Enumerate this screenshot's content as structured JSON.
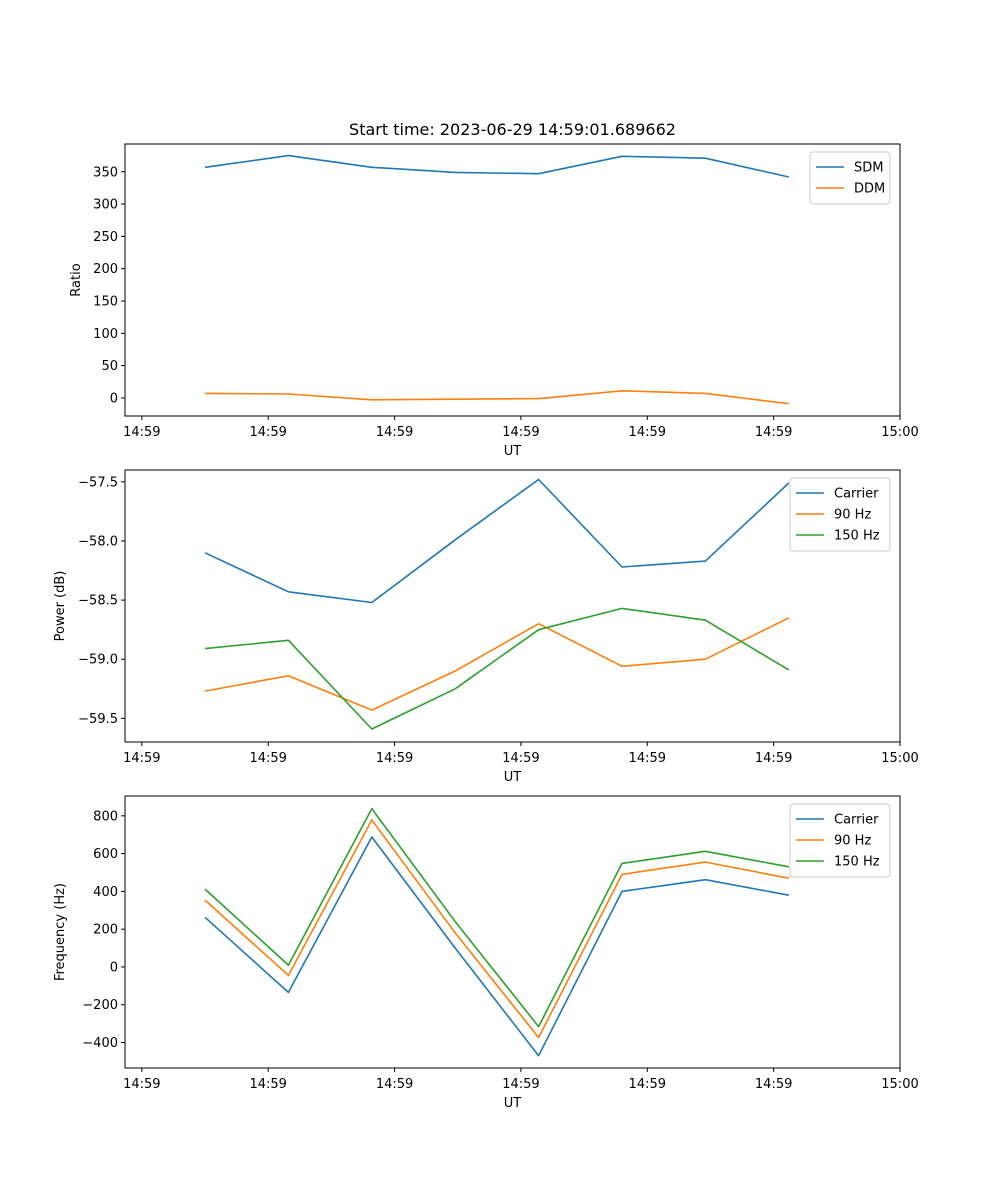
{
  "title": "Start time: 2023-06-29 14:59:01.689662",
  "colors": {
    "blue": "#1f77b4",
    "orange": "#ff7f0e",
    "green": "#2ca02c"
  },
  "chart_data": [
    {
      "type": "line",
      "title": "Start time: 2023-06-29 14:59:01.689662",
      "xlabel": "UT",
      "ylabel": "Ratio",
      "x_ticklabels": [
        "14:59",
        "14:59",
        "14:59",
        "14:59",
        "14:59",
        "14:59",
        "15:00"
      ],
      "x_tick_positions": [
        0,
        1.5,
        3,
        4.5,
        6,
        7.5,
        9
      ],
      "x": [
        0.75,
        1.74,
        2.73,
        3.72,
        4.71,
        5.7,
        6.69,
        7.68
      ],
      "xlim": [
        -0.2,
        9.0
      ],
      "ylim": [
        -28,
        393
      ],
      "yticks": [
        0,
        50,
        100,
        150,
        200,
        250,
        300,
        350
      ],
      "legend": "top-right",
      "series": [
        {
          "name": "SDM",
          "color": "#1f77b4",
          "values": [
            357,
            375,
            357,
            349,
            347,
            374,
            371,
            342
          ]
        },
        {
          "name": "DDM",
          "color": "#ff7f0e",
          "values": [
            7,
            6,
            -3,
            -2,
            -1,
            11,
            7,
            -9
          ]
        }
      ]
    },
    {
      "type": "line",
      "title": "",
      "xlabel": "UT",
      "ylabel": "Power (dB)",
      "x_ticklabels": [
        "14:59",
        "14:59",
        "14:59",
        "14:59",
        "14:59",
        "14:59",
        "15:00"
      ],
      "x_tick_positions": [
        0,
        1.5,
        3,
        4.5,
        6,
        7.5,
        9
      ],
      "x": [
        0.75,
        1.74,
        2.73,
        3.72,
        4.71,
        5.7,
        6.69,
        7.68
      ],
      "xlim": [
        -0.2,
        9.0
      ],
      "ylim": [
        -59.7,
        -57.4
      ],
      "yticks": [
        -59.5,
        -59.0,
        -58.5,
        -58.0,
        -57.5
      ],
      "ytick_labels": [
        "−59.5",
        "−59.0",
        "−58.5",
        "−58.0",
        "−57.5"
      ],
      "legend": "top-right",
      "series": [
        {
          "name": "Carrier",
          "color": "#1f77b4",
          "values": [
            -58.1,
            -58.43,
            -58.52,
            -57.99,
            -57.48,
            -58.22,
            -58.17,
            -57.51
          ]
        },
        {
          "name": "90 Hz",
          "color": "#ff7f0e",
          "values": [
            -59.27,
            -59.14,
            -59.43,
            -59.1,
            -58.7,
            -59.06,
            -59.0,
            -58.65
          ]
        },
        {
          "name": "150 Hz",
          "color": "#2ca02c",
          "values": [
            -58.91,
            -58.84,
            -59.59,
            -59.25,
            -58.75,
            -58.57,
            -58.67,
            -59.09
          ]
        }
      ]
    },
    {
      "type": "line",
      "title": "",
      "xlabel": "UT",
      "ylabel": "Frequency (Hz)",
      "x_ticklabels": [
        "14:59",
        "14:59",
        "14:59",
        "14:59",
        "14:59",
        "14:59",
        "15:00"
      ],
      "x_tick_positions": [
        0,
        1.5,
        3,
        4.5,
        6,
        7.5,
        9
      ],
      "x": [
        0.75,
        1.74,
        2.73,
        3.72,
        4.71,
        5.7,
        6.69,
        7.68
      ],
      "xlim": [
        -0.2,
        9.0
      ],
      "ylim": [
        -535,
        905
      ],
      "yticks": [
        -400,
        -200,
        0,
        200,
        400,
        600,
        800
      ],
      "ytick_labels": [
        "−400",
        "−200",
        "0",
        "200",
        "400",
        "600",
        "800"
      ],
      "legend": "top-right",
      "series": [
        {
          "name": "Carrier",
          "color": "#1f77b4",
          "values": [
            263,
            -135,
            688,
            100,
            -470,
            400,
            462,
            380
          ]
        },
        {
          "name": "90 Hz",
          "color": "#ff7f0e",
          "values": [
            354,
            -45,
            778,
            180,
            -374,
            490,
            555,
            470
          ]
        },
        {
          "name": "150 Hz",
          "color": "#2ca02c",
          "values": [
            412,
            10,
            838,
            240,
            -316,
            548,
            612,
            530
          ]
        }
      ]
    }
  ]
}
